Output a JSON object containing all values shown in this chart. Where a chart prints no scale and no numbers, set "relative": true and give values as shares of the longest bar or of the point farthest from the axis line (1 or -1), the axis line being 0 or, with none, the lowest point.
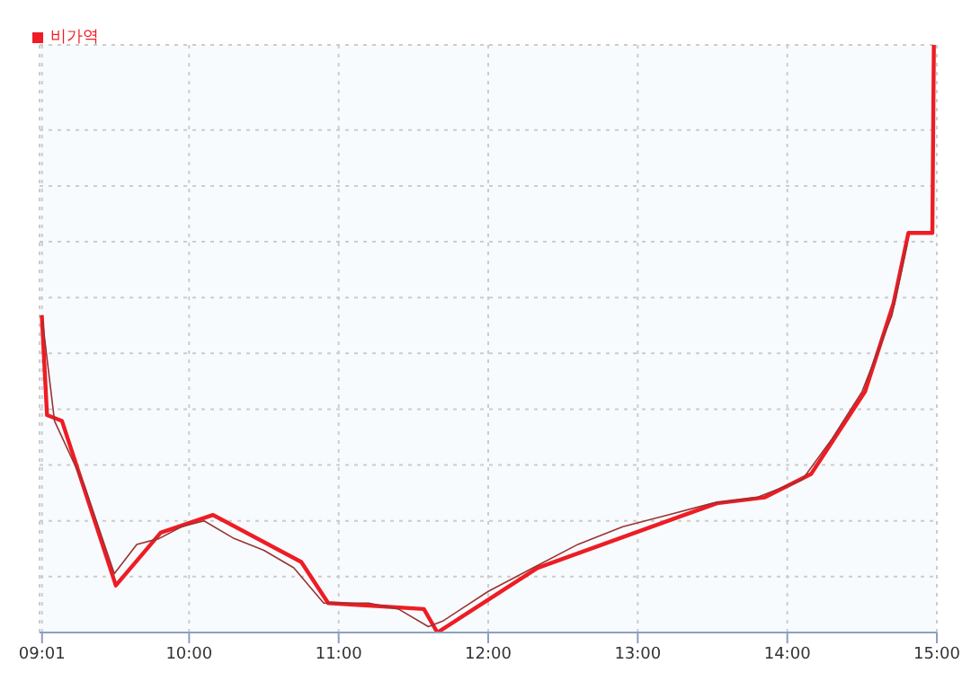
{
  "chart_data": {
    "type": "line",
    "relative": true,
    "xlim": [
      9,
      15
    ],
    "xticks": [
      {
        "value": 9.0167,
        "label": "09:01"
      },
      {
        "value": 10,
        "label": "10:00"
      },
      {
        "value": 11,
        "label": "11:00"
      },
      {
        "value": 12,
        "label": "12:00"
      },
      {
        "value": 13,
        "label": "13:00"
      },
      {
        "value": 14,
        "label": "14:00"
      },
      {
        "value": 15,
        "label": "15:00"
      }
    ],
    "series": [
      {
        "name": "비가역",
        "color": "#ee1c24",
        "x": [
          9.015,
          9.05,
          9.15,
          9.51,
          9.81,
          10.16,
          10.75,
          10.93,
          11.57,
          11.66,
          12.33,
          13.53,
          13.85,
          14.16,
          14.52,
          14.71,
          14.81,
          14.97,
          14.98
        ],
        "values": [
          0.54,
          0.37,
          0.36,
          0.08,
          0.17,
          0.2,
          0.12,
          0.05,
          0.04,
          0,
          0.11,
          0.22,
          0.23,
          0.27,
          0.41,
          0.56,
          0.68,
          0.68,
          1
        ]
      },
      {
        "color": "#993333",
        "x": [
          9.02,
          9.1,
          9.3,
          9.5,
          9.65,
          9.8,
          9.95,
          10.1,
          10.3,
          10.5,
          10.7,
          10.9,
          11.2,
          11.4,
          11.6,
          11.7,
          12.0,
          12.3,
          12.6,
          12.9,
          13.2,
          13.5,
          13.8,
          14.1,
          14.3,
          14.5,
          14.7,
          14.8
        ],
        "values": [
          0.53,
          0.36,
          0.25,
          0.1,
          0.15,
          0.16,
          0.18,
          0.19,
          0.16,
          0.14,
          0.11,
          0.05,
          0.05,
          0.04,
          0.01,
          0.02,
          0.07,
          0.11,
          0.15,
          0.18,
          0.2,
          0.22,
          0.23,
          0.26,
          0.33,
          0.41,
          0.54,
          0.66
        ]
      }
    ],
    "grid": true,
    "legend": "top left",
    "line_style": "solid",
    "marker": "none"
  }
}
